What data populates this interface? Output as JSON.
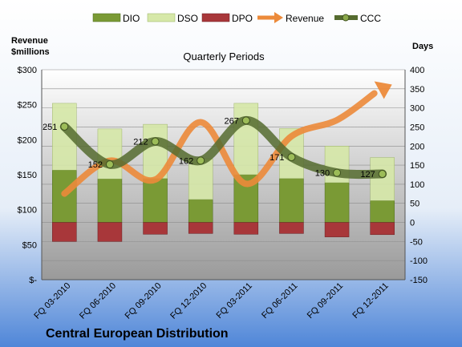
{
  "chart_data": {
    "type": "bar",
    "title": "Central European Distribution",
    "subtitle": "Quarterly Periods",
    "y_left_label": [
      "Revenue",
      "$millions"
    ],
    "y_right_label": "Days",
    "y_left_ticks": [
      "$-",
      "$50",
      "$100",
      "$150",
      "$200",
      "$250",
      "$300"
    ],
    "y_left_range": [
      0,
      300
    ],
    "y_right_range": [
      -150,
      400
    ],
    "y_right_ticks": [
      "-150",
      "-100",
      "-50",
      "0",
      "50",
      "100",
      "150",
      "200",
      "250",
      "300",
      "350",
      "400"
    ],
    "categories": [
      "FQ 03-2010",
      "FQ 06-2010",
      "FQ 09-2010",
      "FQ 12-2010",
      "FQ 03-2011",
      "FQ 06-2011",
      "FQ 09-2011",
      "FQ 12-2011"
    ],
    "series": [
      {
        "name": "DIO",
        "values": [
          137,
          114,
          115,
          60,
          125,
          115,
          104,
          57
        ]
      },
      {
        "name": "DSO",
        "values": [
          175,
          131,
          142,
          107,
          187,
          131,
          96,
          113
        ]
      },
      {
        "name": "DPO",
        "values": [
          -50,
          -50,
          -31,
          -29,
          -31,
          -29,
          -38,
          -32
        ]
      },
      {
        "name": "Revenue",
        "values": [
          123,
          170,
          143,
          225,
          137,
          205,
          228,
          272
        ]
      },
      {
        "name": "CCC",
        "values": [
          251,
          152,
          212,
          162,
          267,
          171,
          130,
          127
        ]
      }
    ],
    "ccc_labels": [
      "251",
      "152",
      "212",
      "162",
      "267",
      "171",
      "130",
      "127"
    ],
    "legend_position": "top",
    "grid": true,
    "colors": {
      "DIO": "#7a9a35",
      "DSO": "#d6e8a8",
      "DPO": "#a8373a",
      "Revenue": "#ec8a3a",
      "CCC": "#556b2f"
    }
  }
}
